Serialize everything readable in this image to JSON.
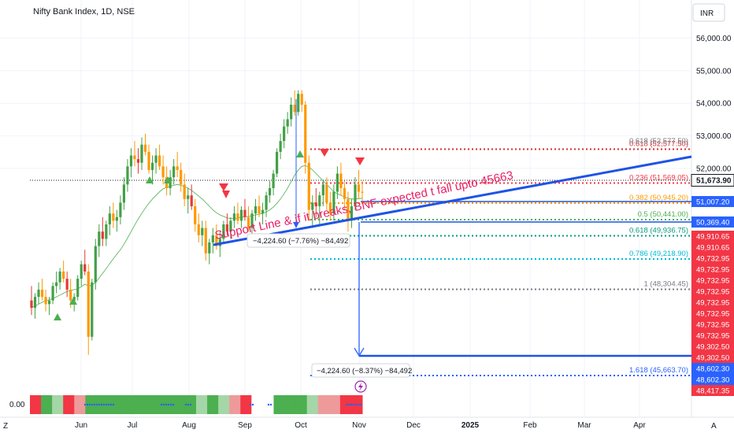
{
  "header": {
    "title": "Nifty Bank Index, 1D, NSE",
    "currency_button": "INR"
  },
  "chart_data": {
    "type": "candlestick",
    "title": "Nifty Bank Index, 1D, NSE",
    "ylim": [
      48417.35,
      56600
    ],
    "y_ticks": [
      52000,
      53000,
      54000,
      55000,
      56000
    ],
    "y_tick_labels": [
      "52,000.00",
      "53,000.00",
      "54,000.00",
      "55,000.00",
      "56,000.00"
    ],
    "x_ticks": [
      "Jun",
      "Jul",
      "Aug",
      "Sep",
      "Oct",
      "Nov",
      "Dec",
      "2025",
      "Feb",
      "Mar",
      "Apr"
    ],
    "last_price": 51673.9,
    "last_price_label": "51,673.90",
    "price_tags": [
      {
        "label": "51,007.20",
        "value": 51007.2,
        "color": "#2962ff"
      },
      {
        "label": "50,369.40",
        "value": 50369.4,
        "color": "#2962ff"
      },
      {
        "label": "49,910.65",
        "value": 49910.65,
        "color": "#f23645"
      },
      {
        "label": "49,910.65",
        "value": 49910.65,
        "color": "#f23645"
      },
      {
        "label": "49,732.95",
        "value": 49732.95,
        "color": "#f23645"
      },
      {
        "label": "49,732.95",
        "value": 49732.95,
        "color": "#f23645"
      },
      {
        "label": "49,732.95",
        "value": 49732.95,
        "color": "#f23645"
      },
      {
        "label": "49,732.95",
        "value": 49732.95,
        "color": "#f23645"
      },
      {
        "label": "49,732.95",
        "value": 49732.95,
        "color": "#f23645"
      },
      {
        "label": "49,732.95",
        "value": 49732.95,
        "color": "#f23645"
      },
      {
        "label": "49,732.95",
        "value": 49732.95,
        "color": "#f23645"
      },
      {
        "label": "49,732.95",
        "value": 49732.95,
        "color": "#f23645"
      },
      {
        "label": "49,302.50",
        "value": 49302.5,
        "color": "#f23645"
      },
      {
        "label": "49,302.50",
        "value": 49302.5,
        "color": "#f23645"
      },
      {
        "label": "48,602.30",
        "value": 48602.3,
        "color": "#2962ff"
      },
      {
        "label": "48,602.30",
        "value": 48602.3,
        "color": "#2962ff"
      },
      {
        "label": "48,417.35",
        "value": 48417.35,
        "color": "#f23645"
      }
    ],
    "fib_levels": [
      {
        "ratio": "0.618",
        "label": "0.618 (52,577.50)",
        "value": 52577.5,
        "color": "#d32f2f"
      },
      {
        "ratio": "0.236",
        "label": "0.236 (51,569.05)",
        "value": 51569.05,
        "color": "#f23645"
      },
      {
        "ratio": "0.382",
        "label": "0.382 (50,945.20)",
        "value": 50945.2,
        "color": "#ff9800"
      },
      {
        "ratio": "0.5",
        "label": "0.5 (50,441.00)",
        "value": 50441.0,
        "color": "#4caf50"
      },
      {
        "ratio": "0.618",
        "label": "0.618 (49,936.75)",
        "value": 49936.75,
        "color": "#089981"
      },
      {
        "ratio": "0.786",
        "label": "0.786 (49,218.90)",
        "value": 49218.9,
        "color": "#00bcd4"
      },
      {
        "ratio": "1",
        "label": "1 (48,304.45)",
        "value": 48304.45,
        "color": "#787b86"
      },
      {
        "ratio": "1.618",
        "label": "1.618 (45,663.70)",
        "value": 45663.7,
        "color": "#2962ff"
      }
    ],
    "annotation": "Support Line & if it breaks, BNF expected t fall upto 45663",
    "measures": [
      {
        "label": "−4,224.60 (−7.76%) −84,492"
      },
      {
        "label": "−4,224.60 (−8.37%) −84,492"
      }
    ],
    "indicator_value": "0.00",
    "candles": [
      [
        48700,
        49100,
        48300,
        48500
      ],
      [
        48500,
        48900,
        48200,
        48800
      ],
      [
        48800,
        49200,
        48600,
        49000
      ],
      [
        49000,
        49300,
        48700,
        48800
      ],
      [
        48800,
        49000,
        48400,
        48600
      ],
      [
        48600,
        48800,
        48300,
        48700
      ],
      [
        48700,
        49200,
        48600,
        49100
      ],
      [
        49100,
        49500,
        48900,
        49200
      ],
      [
        49200,
        49600,
        49000,
        49500
      ],
      [
        49500,
        49800,
        49200,
        49300
      ],
      [
        49300,
        49500,
        48800,
        49000
      ],
      [
        49000,
        49300,
        48500,
        48700
      ],
      [
        48700,
        48900,
        48400,
        48800
      ],
      [
        48800,
        49400,
        48700,
        49300
      ],
      [
        49300,
        49800,
        49100,
        49700
      ],
      [
        49700,
        50100,
        49400,
        49500
      ],
      [
        49500,
        49700,
        47200,
        47700
      ],
      [
        47700,
        49300,
        47600,
        49200
      ],
      [
        49200,
        50400,
        49000,
        50200
      ],
      [
        50200,
        50800,
        49900,
        50600
      ],
      [
        50600,
        51000,
        50200,
        50400
      ],
      [
        50400,
        50900,
        50200,
        50800
      ],
      [
        50800,
        51300,
        50500,
        51100
      ],
      [
        51100,
        51400,
        50700,
        50900
      ],
      [
        50900,
        51200,
        50600,
        51000
      ],
      [
        51000,
        51600,
        50800,
        51400
      ],
      [
        51400,
        52100,
        51200,
        51900
      ],
      [
        51900,
        52600,
        51700,
        52400
      ],
      [
        52400,
        52900,
        52100,
        52700
      ],
      [
        52700,
        53100,
        52400,
        52600
      ],
      [
        52600,
        52900,
        52200,
        52500
      ],
      [
        52500,
        53200,
        52300,
        53000
      ],
      [
        53000,
        53300,
        52700,
        52800
      ],
      [
        52800,
        53000,
        52200,
        52300
      ],
      [
        52300,
        52700,
        51900,
        52500
      ],
      [
        52500,
        52900,
        52200,
        52700
      ],
      [
        52700,
        53000,
        52300,
        52400
      ],
      [
        52400,
        52700,
        51900,
        52100
      ],
      [
        52100,
        52400,
        51600,
        51800
      ],
      [
        51800,
        52300,
        51600,
        52100
      ],
      [
        52100,
        52600,
        51900,
        52400
      ],
      [
        52400,
        52800,
        52100,
        52300
      ],
      [
        52300,
        52500,
        51700,
        51900
      ],
      [
        51900,
        52200,
        51300,
        51500
      ],
      [
        51500,
        51800,
        51100,
        51600
      ],
      [
        51600,
        51900,
        51200,
        51300
      ],
      [
        51300,
        51500,
        50600,
        50800
      ],
      [
        50800,
        51100,
        50300,
        50500
      ],
      [
        50500,
        50900,
        50200,
        50700
      ],
      [
        50700,
        50900,
        49800,
        50000
      ],
      [
        50000,
        50400,
        49700,
        50300
      ],
      [
        50300,
        50700,
        50000,
        50500
      ],
      [
        50500,
        50800,
        50100,
        50200
      ],
      [
        50200,
        50600,
        49900,
        50400
      ],
      [
        50400,
        50900,
        50300,
        50800
      ],
      [
        50800,
        51100,
        50500,
        50600
      ],
      [
        50600,
        51000,
        50400,
        50900
      ],
      [
        50900,
        51300,
        50700,
        51100
      ],
      [
        51100,
        51400,
        50800,
        50900
      ],
      [
        50900,
        51300,
        50700,
        51200
      ],
      [
        51200,
        51500,
        50900,
        51000
      ],
      [
        51000,
        51300,
        50600,
        50700
      ],
      [
        50700,
        51200,
        50500,
        51100
      ],
      [
        51100,
        51500,
        50900,
        51300
      ],
      [
        51300,
        51600,
        51000,
        51100
      ],
      [
        51100,
        51400,
        50800,
        51200
      ],
      [
        51200,
        51700,
        51000,
        51600
      ],
      [
        51600,
        52000,
        51400,
        51800
      ],
      [
        51800,
        52300,
        51600,
        52200
      ],
      [
        52200,
        52900,
        52100,
        52800
      ],
      [
        52800,
        53300,
        52600,
        53100
      ],
      [
        53100,
        53700,
        52900,
        53500
      ],
      [
        53500,
        53900,
        53300,
        53700
      ],
      [
        53700,
        54300,
        53500,
        54100
      ],
      [
        54100,
        54500,
        53800,
        53900
      ],
      [
        53900,
        54500,
        53800,
        54400
      ],
      [
        54400,
        54500,
        53900,
        54100
      ],
      [
        54100,
        54200,
        52200,
        52500
      ],
      [
        52500,
        52700,
        50900,
        51200
      ],
      [
        51200,
        51600,
        50700,
        51400
      ],
      [
        51400,
        51800,
        51000,
        51300
      ],
      [
        51300,
        51700,
        50800,
        51600
      ],
      [
        51600,
        52000,
        51300,
        51900
      ],
      [
        51900,
        52100,
        51200,
        51400
      ],
      [
        51400,
        51700,
        50900,
        51100
      ],
      [
        51100,
        51900,
        50900,
        51700
      ],
      [
        51700,
        52400,
        51500,
        52200
      ],
      [
        52200,
        52500,
        51600,
        51800
      ],
      [
        51800,
        52000,
        51200,
        51500
      ],
      [
        51500,
        51700,
        50600,
        50900
      ],
      [
        50900,
        51500,
        50700,
        51300
      ],
      [
        51300,
        52100,
        51200,
        51900
      ],
      [
        51900,
        52300,
        51500,
        51700
      ],
      [
        51700,
        52000,
        51400,
        51673.9
      ]
    ],
    "ma_values": [
      48500,
      48550,
      48600,
      48650,
      48700,
      48720,
      48760,
      48800,
      48850,
      48900,
      48950,
      48980,
      49000,
      49020,
      49080,
      49150,
      49100,
      49120,
      49200,
      49320,
      49450,
      49580,
      49720,
      49850,
      49980,
      50100,
      50250,
      50420,
      50600,
      50780,
      50950,
      51100,
      51250,
      51380,
      51500,
      51600,
      51700,
      51780,
      51820,
      51850,
      51880,
      51900,
      51880,
      51840,
      51800,
      51740,
      51660,
      51580,
      51500,
      51400,
      51300,
      51200,
      51120,
      51060,
      51020,
      50980,
      50960,
      50960,
      50980,
      51000,
      51010,
      51020,
      51040,
      51060,
      51080,
      51100,
      51140,
      51200,
      51280,
      51380,
      51500,
      51640,
      51800,
      51980,
      52160,
      52300,
      52400,
      52420,
      52380,
      52300,
      52200,
      52100,
      52000,
      51900,
      51800,
      51700,
      51650,
      51600,
      51560,
      51520,
      51500,
      51500,
      51510,
      51520
    ],
    "indicator_strip": [
      "#f23645",
      "#4caf50",
      "#a5d6a7",
      "#f23645",
      "#ef9a9a",
      "#4caf50",
      "#4caf50",
      "#4caf50",
      "#4caf50",
      "#4caf50",
      "#4caf50",
      "#4caf50",
      "#4caf50",
      "#4caf50",
      "#4caf50",
      "#a5d6a7",
      "#4caf50",
      "#a5d6a7",
      "#ef9a9a",
      "#f23645",
      "#ffffff",
      "#ffffff",
      "#4caf50",
      "#4caf50",
      "#4caf50",
      "#a5d6a7",
      "#ef9a9a",
      "#ef9a9a",
      "#f23645",
      "#f23645"
    ]
  }
}
